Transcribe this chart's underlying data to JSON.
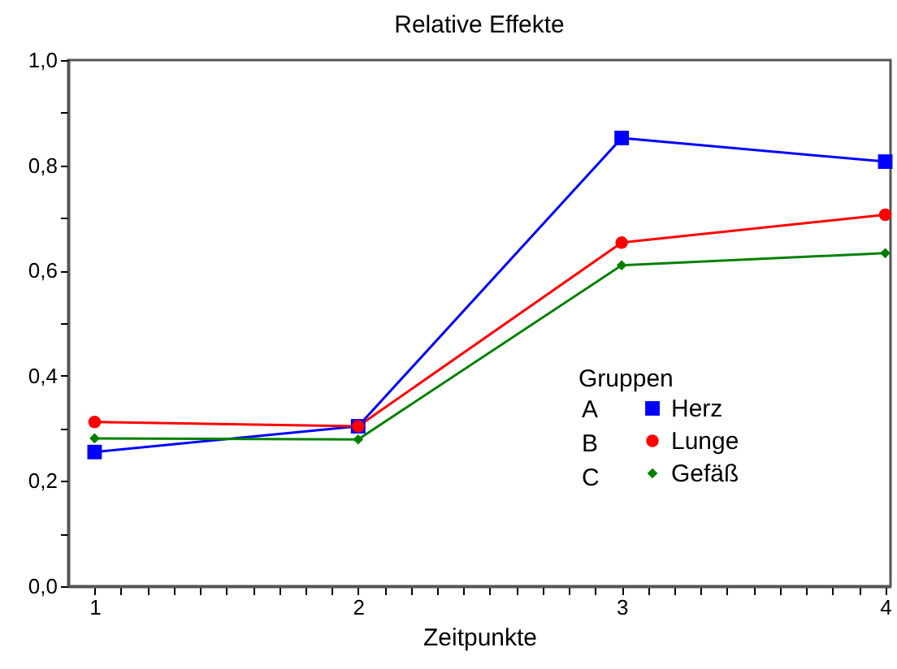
{
  "chart_data": {
    "type": "line",
    "title": "Relative Effekte",
    "xlabel": "Zeitpunkte",
    "legend_title": "Gruppen",
    "legend": "right",
    "annotations": [
      "A",
      "B",
      "C"
    ],
    "x": [
      1,
      2,
      3,
      4
    ],
    "series": [
      {
        "name": "Herz",
        "color": "#0000ff",
        "marker": "square",
        "values": [
          0.255,
          0.304,
          0.852,
          0.807
        ]
      },
      {
        "name": "Lunge",
        "color": "#ff0000",
        "marker": "circle",
        "values": [
          0.312,
          0.304,
          0.653,
          0.706
        ]
      },
      {
        "name": "Gefäß",
        "color": "#008000",
        "marker": "diamond",
        "values": [
          0.281,
          0.279,
          0.61,
          0.633
        ]
      }
    ],
    "xlim": [
      0.9,
      4.02
    ],
    "xticks": [
      1,
      {
        "value": 1.1,
        "label": null
      },
      {
        "value": 1.2,
        "label": null
      },
      {
        "value": 1.3,
        "label": null
      },
      {
        "value": 1.4,
        "label": null
      },
      {
        "value": 1.5,
        "label": null
      },
      {
        "value": 1.6,
        "label": null
      },
      {
        "value": 1.7,
        "label": null
      },
      {
        "value": 1.8,
        "label": null
      },
      {
        "value": 1.9,
        "label": null
      },
      2,
      {
        "value": 2.1,
        "label": null
      },
      {
        "value": 2.2,
        "label": null
      },
      {
        "value": 2.3,
        "label": null
      },
      {
        "value": 2.4,
        "label": null
      },
      {
        "value": 2.5,
        "label": null
      },
      {
        "value": 2.6,
        "label": null
      },
      {
        "value": 2.7,
        "label": null
      },
      {
        "value": 2.8,
        "label": null
      },
      {
        "value": 2.9,
        "label": null
      },
      3,
      {
        "value": 3.1,
        "label": null
      },
      {
        "value": 3.2,
        "label": null
      },
      {
        "value": 3.3,
        "label": null
      },
      {
        "value": 3.4,
        "label": null
      },
      {
        "value": 3.5,
        "label": null
      },
      {
        "value": 3.6,
        "label": null
      },
      {
        "value": 3.7,
        "label": null
      },
      {
        "value": 3.8,
        "label": null
      },
      {
        "value": 3.9,
        "label": null
      },
      4
    ],
    "ylim": [
      0,
      1
    ],
    "yticks": [
      {
        "value": 0,
        "label": "0,0"
      },
      {
        "value": 0.1,
        "label": null
      },
      {
        "value": 0.2,
        "label": "0,2"
      },
      {
        "value": 0.3,
        "label": null
      },
      {
        "value": 0.4,
        "label": "0,4"
      },
      {
        "value": 0.5,
        "label": null
      },
      {
        "value": 0.6,
        "label": "0,6"
      },
      {
        "value": 0.7,
        "label": null
      },
      {
        "value": 0.8,
        "label": "0,8"
      },
      {
        "value": 0.9,
        "label": null
      },
      {
        "value": 1,
        "label": "1,0"
      }
    ],
    "grid": false
  }
}
